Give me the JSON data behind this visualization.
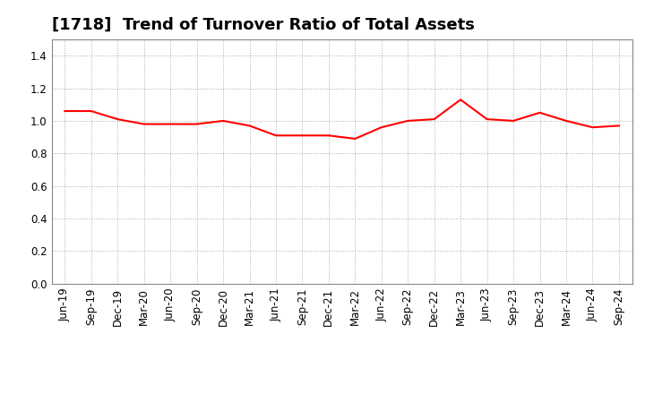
{
  "title": "[1718]  Trend of Turnover Ratio of Total Assets",
  "x_labels": [
    "Jun-19",
    "Sep-19",
    "Dec-19",
    "Mar-20",
    "Jun-20",
    "Sep-20",
    "Dec-20",
    "Mar-21",
    "Jun-21",
    "Sep-21",
    "Dec-21",
    "Mar-22",
    "Jun-22",
    "Sep-22",
    "Dec-22",
    "Mar-23",
    "Jun-23",
    "Sep-23",
    "Dec-23",
    "Mar-24",
    "Jun-24",
    "Sep-24"
  ],
  "y_values": [
    1.06,
    1.06,
    1.01,
    0.98,
    0.98,
    0.98,
    1.0,
    0.97,
    0.91,
    0.91,
    0.91,
    0.89,
    0.96,
    1.0,
    1.01,
    1.13,
    1.01,
    1.0,
    1.05,
    1.0,
    0.96,
    0.97
  ],
  "line_color": "#FF0000",
  "line_width": 1.5,
  "ylim": [
    0.0,
    1.5
  ],
  "yticks": [
    0.0,
    0.2,
    0.4,
    0.6,
    0.8,
    1.0,
    1.2,
    1.4
  ],
  "background_color": "#FFFFFF",
  "grid_color": "#AAAAAA",
  "title_fontsize": 13,
  "tick_fontsize": 8.5
}
